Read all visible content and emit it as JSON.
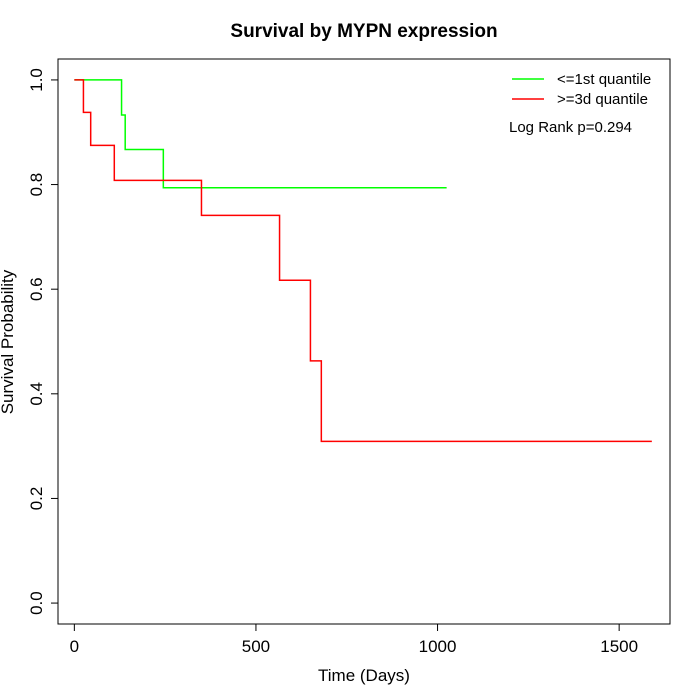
{
  "chart_data": {
    "type": "line",
    "title": "Survival by MYPN expression",
    "xlabel": "Time (Days)",
    "ylabel": "Survival Probability",
    "xlim": [
      -45,
      1640
    ],
    "ylim": [
      -0.04,
      1.04
    ],
    "x_ticks": [
      0,
      500,
      1000,
      1500
    ],
    "y_ticks": [
      0.0,
      0.2,
      0.4,
      0.6,
      0.8,
      1.0
    ],
    "x_tick_labels": [
      "0",
      "500",
      "1000",
      "1500"
    ],
    "y_tick_labels": [
      "0.0",
      "0.2",
      "0.4",
      "0.6",
      "0.8",
      "1.0"
    ],
    "annotation": "Log Rank p=0.294",
    "legend_position": "top-right",
    "grid": false,
    "series": [
      {
        "name": "<=1st quantile",
        "color": "#00ff00",
        "step": true,
        "x": [
          0,
          130,
          140,
          245,
          1025
        ],
        "y": [
          1.0,
          0.933,
          0.867,
          0.794,
          0.794
        ]
      },
      {
        "name": ">=3d quantile",
        "color": "#ff0000",
        "step": true,
        "x": [
          0,
          25,
          45,
          110,
          350,
          565,
          650,
          680,
          1590
        ],
        "y": [
          1.0,
          0.938,
          0.875,
          0.808,
          0.741,
          0.617,
          0.463,
          0.309,
          0.309
        ]
      }
    ]
  }
}
